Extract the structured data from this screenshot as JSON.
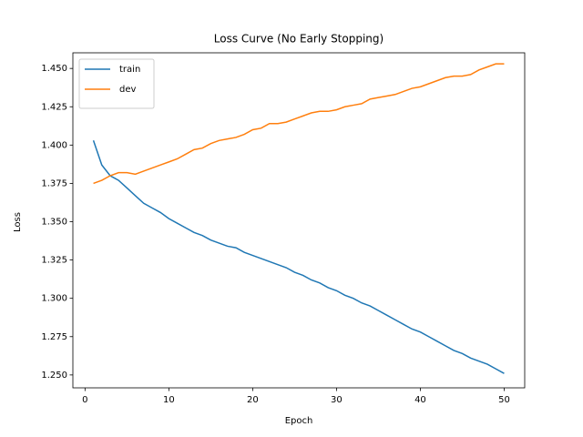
{
  "chart_data": {
    "type": "line",
    "title": "Loss Curve (No Early Stopping)",
    "x_label": "Epoch",
    "y_label": "Loss",
    "x": [
      1,
      2,
      3,
      4,
      5,
      6,
      7,
      8,
      9,
      10,
      11,
      12,
      13,
      14,
      15,
      16,
      17,
      18,
      19,
      20,
      21,
      22,
      23,
      24,
      25,
      26,
      27,
      28,
      29,
      30,
      31,
      32,
      33,
      34,
      35,
      36,
      37,
      38,
      39,
      40,
      41,
      42,
      43,
      44,
      45,
      46,
      47,
      48,
      49,
      50
    ],
    "series": [
      {
        "name": "train",
        "color": "#1f77b4",
        "values": [
          1.403,
          1.387,
          1.38,
          1.377,
          1.372,
          1.367,
          1.362,
          1.359,
          1.356,
          1.352,
          1.349,
          1.346,
          1.343,
          1.341,
          1.338,
          1.336,
          1.334,
          1.333,
          1.33,
          1.328,
          1.326,
          1.324,
          1.322,
          1.32,
          1.317,
          1.315,
          1.312,
          1.31,
          1.307,
          1.305,
          1.302,
          1.3,
          1.297,
          1.295,
          1.292,
          1.289,
          1.286,
          1.283,
          1.28,
          1.278,
          1.275,
          1.272,
          1.269,
          1.266,
          1.264,
          1.261,
          1.259,
          1.257,
          1.254,
          1.251
        ]
      },
      {
        "name": "dev",
        "color": "#ff7f0e",
        "values": [
          1.375,
          1.377,
          1.38,
          1.382,
          1.382,
          1.381,
          1.383,
          1.385,
          1.387,
          1.389,
          1.391,
          1.394,
          1.397,
          1.398,
          1.401,
          1.403,
          1.404,
          1.405,
          1.407,
          1.41,
          1.411,
          1.414,
          1.414,
          1.415,
          1.417,
          1.419,
          1.421,
          1.422,
          1.422,
          1.423,
          1.425,
          1.426,
          1.427,
          1.43,
          1.431,
          1.432,
          1.433,
          1.435,
          1.437,
          1.438,
          1.44,
          1.442,
          1.444,
          1.445,
          1.445,
          1.446,
          1.449,
          1.451,
          1.453,
          1.453
        ]
      }
    ],
    "xlim": [
      -1.45,
      52.45
    ],
    "ylim": [
      1.2416,
      1.4602
    ],
    "xticks": [
      0,
      10,
      20,
      30,
      40,
      50
    ],
    "yticks": [
      {
        "value": 1.25,
        "label": "1.250"
      },
      {
        "value": 1.275,
        "label": "1.275"
      },
      {
        "value": 1.3,
        "label": "1.300"
      },
      {
        "value": 1.325,
        "label": "1.325"
      },
      {
        "value": 1.35,
        "label": "1.350"
      },
      {
        "value": 1.375,
        "label": "1.375"
      },
      {
        "value": 1.4,
        "label": "1.400"
      },
      {
        "value": 1.425,
        "label": "1.425"
      },
      {
        "value": 1.45,
        "label": "1.450"
      }
    ],
    "grid": false,
    "legend": "upper left"
  }
}
